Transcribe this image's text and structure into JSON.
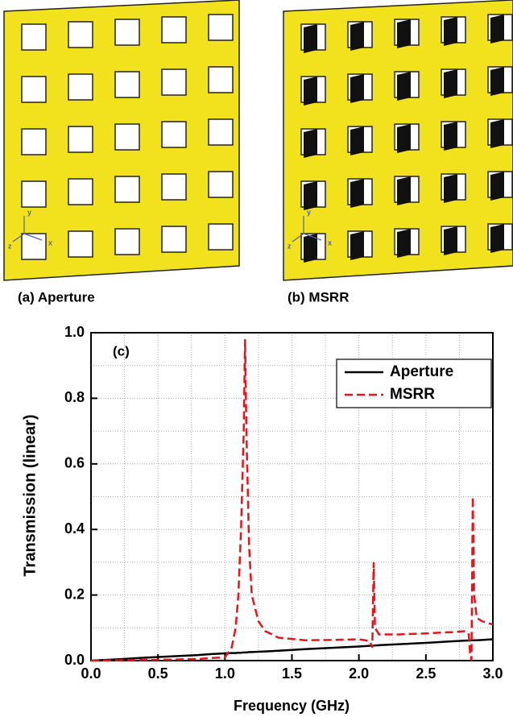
{
  "panels": [
    {
      "label": "(a) Aperture",
      "axis_labels": [
        "y",
        "z",
        "x"
      ]
    },
    {
      "label": "(b) MSRR",
      "axis_labels": [
        "y",
        "z",
        "x"
      ]
    }
  ],
  "chart_data": {
    "type": "line",
    "title": "(c)",
    "x_label": "Frequency (GHz)",
    "y_label": "Transmission (linear)",
    "x": [
      0,
      0.2,
      0.4,
      0.6,
      0.8,
      0.9,
      1.0,
      1.05,
      1.08,
      1.1,
      1.12,
      1.14,
      1.15,
      1.16,
      1.18,
      1.2,
      1.25,
      1.3,
      1.4,
      1.6,
      1.8,
      2.0,
      2.08,
      2.1,
      2.11,
      2.12,
      2.15,
      2.3,
      2.5,
      2.7,
      2.8,
      2.82,
      2.83,
      2.84,
      2.85,
      2.86,
      2.88,
      2.92,
      3.0
    ],
    "series": [
      {
        "name": "Aperture",
        "color": "#000000",
        "dashed": false,
        "values": [
          0,
          0.004,
          0.009,
          0.013,
          0.017,
          0.02,
          0.022,
          0.023,
          0.023,
          0.024,
          0.024,
          0.025,
          0.025,
          0.025,
          0.026,
          0.026,
          0.027,
          0.028,
          0.03,
          0.035,
          0.039,
          0.043,
          0.045,
          0.046,
          0.046,
          0.046,
          0.047,
          0.05,
          0.054,
          0.059,
          0.061,
          0.061,
          0.061,
          0.062,
          0.062,
          0.062,
          0.062,
          0.063,
          0.065
        ]
      },
      {
        "name": "MSRR",
        "color": "#e8141b",
        "dashed": true,
        "values": [
          0,
          0.001,
          0.002,
          0.003,
          0.005,
          0.008,
          0.01,
          0.04,
          0.1,
          0.2,
          0.4,
          0.7,
          0.98,
          0.7,
          0.35,
          0.2,
          0.12,
          0.09,
          0.07,
          0.062,
          0.063,
          0.065,
          0.06,
          0.04,
          0.3,
          0.1,
          0.08,
          0.08,
          0.083,
          0.087,
          0.09,
          0.08,
          0.02,
          0.0,
          0.5,
          0.2,
          0.13,
          0.12,
          0.11
        ]
      }
    ],
    "xlim": [
      0,
      3
    ],
    "ylim": [
      0,
      1
    ],
    "xticks": [
      {
        "value": 0,
        "label": "0.0"
      },
      0.5,
      {
        "value": 1,
        "label": "1.0"
      },
      1.5,
      {
        "value": 2,
        "label": "2.0"
      },
      2.5,
      {
        "value": 3,
        "label": "3.0"
      }
    ],
    "yticks": [
      {
        "value": 0,
        "label": "0.0"
      },
      0.2,
      0.4,
      0.6,
      0.8,
      {
        "value": 1,
        "label": "1.0"
      }
    ],
    "x_minor_ticks": [
      0.25,
      0.75,
      1.25,
      1.75,
      2.25,
      2.75
    ],
    "y_minor_ticks": [
      0.1,
      0.3,
      0.5,
      0.7,
      0.9
    ],
    "grid": true,
    "legend": "upper right"
  }
}
